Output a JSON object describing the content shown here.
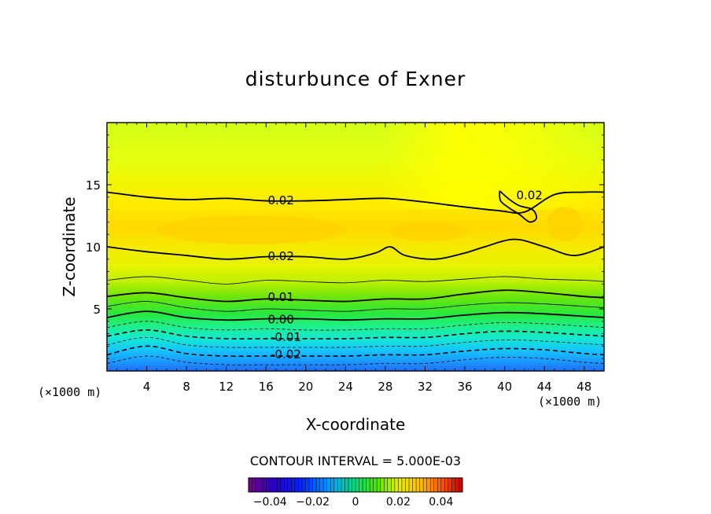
{
  "chart_data": {
    "type": "contour",
    "title": "disturbunce of Exner",
    "xlabel": "X-coordinate",
    "ylabel": "Z-coordinate",
    "x_unit": "(×1000 m)",
    "y_unit": "(×1000 m)",
    "xlim": [
      0,
      50
    ],
    "ylim": [
      0,
      20
    ],
    "x_ticks": [
      "4",
      "8",
      "12",
      "16",
      "20",
      "24",
      "28",
      "32",
      "36",
      "40",
      "44",
      "48"
    ],
    "y_ticks": [
      "5",
      "10",
      "15"
    ],
    "contour_interval_text": "CONTOUR INTERVAL = 5.000E-03",
    "contour_labels": [
      {
        "text": "0.02",
        "x": 17.5,
        "z": 13.8
      },
      {
        "text": "0.02",
        "x": 42.5,
        "z": 14.2
      },
      {
        "text": "0.02",
        "x": 17.5,
        "z": 9.3
      },
      {
        "text": "0.01",
        "x": 17.5,
        "z": 6.0
      },
      {
        "text": "0.00",
        "x": 17.5,
        "z": 4.2
      },
      {
        "text": "-0.01",
        "x": 18.0,
        "z": 2.8
      },
      {
        "text": "-0.02",
        "x": 18.0,
        "z": 1.4
      }
    ],
    "contours": [
      {
        "level": 0.02,
        "style": "thick",
        "points": [
          [
            0,
            14.4
          ],
          [
            4,
            14
          ],
          [
            8,
            13.8
          ],
          [
            12,
            13.9
          ],
          [
            16,
            13.7
          ],
          [
            20,
            13.7
          ],
          [
            24,
            13.8
          ],
          [
            28,
            13.9
          ],
          [
            32,
            13.6
          ],
          [
            36,
            13.2
          ],
          [
            39.5,
            12.9
          ],
          [
            42,
            12.8
          ],
          [
            45,
            14.2
          ],
          [
            48,
            14.4
          ],
          [
            50,
            14.4
          ]
        ]
      },
      {
        "level": 0.02,
        "style": "thick",
        "points": [
          [
            0,
            10
          ],
          [
            4,
            9.6
          ],
          [
            8,
            9.3
          ],
          [
            12,
            9.0
          ],
          [
            16,
            9.2
          ],
          [
            20,
            9.2
          ],
          [
            24,
            9.0
          ],
          [
            27,
            9.5
          ],
          [
            28.5,
            10.0
          ],
          [
            30,
            9.3
          ],
          [
            33,
            9.0
          ],
          [
            36,
            9.5
          ],
          [
            38,
            10.0
          ],
          [
            41,
            10.6
          ],
          [
            44,
            10.0
          ],
          [
            47,
            9.3
          ],
          [
            50,
            10.0
          ]
        ]
      },
      {
        "level": 0.015,
        "style": "thin",
        "points": [
          [
            0,
            7.3
          ],
          [
            4,
            7.6
          ],
          [
            8,
            7.3
          ],
          [
            12,
            7.0
          ],
          [
            16,
            7.3
          ],
          [
            20,
            7.2
          ],
          [
            24,
            7.1
          ],
          [
            28,
            7.3
          ],
          [
            32,
            7.2
          ],
          [
            36,
            7.4
          ],
          [
            40,
            7.6
          ],
          [
            44,
            7.4
          ],
          [
            48,
            7.3
          ],
          [
            50,
            7.2
          ]
        ]
      },
      {
        "level": 0.01,
        "style": "thick",
        "points": [
          [
            0,
            6.0
          ],
          [
            4,
            6.3
          ],
          [
            8,
            5.9
          ],
          [
            12,
            5.6
          ],
          [
            16,
            5.8
          ],
          [
            20,
            5.7
          ],
          [
            24,
            5.6
          ],
          [
            28,
            5.8
          ],
          [
            32,
            5.8
          ],
          [
            36,
            6.2
          ],
          [
            40,
            6.5
          ],
          [
            44,
            6.3
          ],
          [
            48,
            6.0
          ],
          [
            50,
            5.9
          ]
        ]
      },
      {
        "level": 0.005,
        "style": "thin",
        "points": [
          [
            0,
            5.2
          ],
          [
            4,
            5.6
          ],
          [
            8,
            5.1
          ],
          [
            12,
            4.8
          ],
          [
            16,
            5.0
          ],
          [
            20,
            4.9
          ],
          [
            24,
            4.8
          ],
          [
            28,
            5.0
          ],
          [
            32,
            5.0
          ],
          [
            36,
            5.3
          ],
          [
            40,
            5.5
          ],
          [
            44,
            5.4
          ],
          [
            48,
            5.2
          ],
          [
            50,
            5.1
          ]
        ]
      },
      {
        "level": 0.0,
        "style": "thick",
        "points": [
          [
            0,
            4.3
          ],
          [
            4,
            4.8
          ],
          [
            8,
            4.3
          ],
          [
            12,
            4.1
          ],
          [
            16,
            4.2
          ],
          [
            20,
            4.2
          ],
          [
            24,
            4.1
          ],
          [
            28,
            4.2
          ],
          [
            32,
            4.2
          ],
          [
            36,
            4.5
          ],
          [
            40,
            4.7
          ],
          [
            44,
            4.6
          ],
          [
            48,
            4.4
          ],
          [
            50,
            4.3
          ]
        ]
      },
      {
        "level": -0.005,
        "style": "dashed-thin",
        "points": [
          [
            0,
            3.5
          ],
          [
            4,
            4.0
          ],
          [
            8,
            3.5
          ],
          [
            12,
            3.3
          ],
          [
            16,
            3.4
          ],
          [
            20,
            3.3
          ],
          [
            24,
            3.3
          ],
          [
            28,
            3.4
          ],
          [
            32,
            3.4
          ],
          [
            36,
            3.7
          ],
          [
            40,
            3.9
          ],
          [
            44,
            3.8
          ],
          [
            48,
            3.6
          ],
          [
            50,
            3.5
          ]
        ]
      },
      {
        "level": -0.01,
        "style": "dashed",
        "points": [
          [
            0,
            2.8
          ],
          [
            4,
            3.3
          ],
          [
            8,
            2.8
          ],
          [
            12,
            2.6
          ],
          [
            16,
            2.6
          ],
          [
            20,
            2.6
          ],
          [
            24,
            2.6
          ],
          [
            28,
            2.7
          ],
          [
            32,
            2.7
          ],
          [
            36,
            3.0
          ],
          [
            40,
            3.2
          ],
          [
            44,
            3.1
          ],
          [
            48,
            2.9
          ],
          [
            50,
            2.8
          ]
        ]
      },
      {
        "level": -0.015,
        "style": "dashed-thin",
        "points": [
          [
            0,
            2.1
          ],
          [
            4,
            2.7
          ],
          [
            8,
            2.1
          ],
          [
            12,
            1.9
          ],
          [
            16,
            1.9
          ],
          [
            20,
            1.9
          ],
          [
            24,
            1.9
          ],
          [
            28,
            2.0
          ],
          [
            32,
            2.0
          ],
          [
            36,
            2.3
          ],
          [
            40,
            2.5
          ],
          [
            44,
            2.4
          ],
          [
            48,
            2.2
          ],
          [
            50,
            2.1
          ]
        ]
      },
      {
        "level": -0.02,
        "style": "dashed",
        "points": [
          [
            0,
            1.3
          ],
          [
            4,
            2.0
          ],
          [
            8,
            1.4
          ],
          [
            12,
            1.2
          ],
          [
            16,
            1.2
          ],
          [
            20,
            1.2
          ],
          [
            24,
            1.2
          ],
          [
            28,
            1.3
          ],
          [
            32,
            1.3
          ],
          [
            36,
            1.6
          ],
          [
            40,
            1.8
          ],
          [
            44,
            1.7
          ],
          [
            48,
            1.4
          ],
          [
            50,
            1.3
          ]
        ]
      },
      {
        "level": -0.025,
        "style": "dashed-thin",
        "points": [
          [
            0,
            0.6
          ],
          [
            4,
            1.2
          ],
          [
            8,
            0.7
          ],
          [
            12,
            0.5
          ],
          [
            16,
            0.5
          ],
          [
            20,
            0.5
          ],
          [
            24,
            0.5
          ],
          [
            28,
            0.6
          ],
          [
            32,
            0.6
          ],
          [
            36,
            0.9
          ],
          [
            40,
            1.1
          ],
          [
            44,
            1.0
          ],
          [
            48,
            0.7
          ],
          [
            50,
            0.6
          ]
        ]
      }
    ],
    "loop_contour": {
      "level": 0.02,
      "style": "thick",
      "points": [
        [
          39.5,
          14.5
        ],
        [
          40.5,
          13.8
        ],
        [
          41.5,
          13.3
        ],
        [
          42.8,
          13.0
        ],
        [
          43.2,
          12.3
        ],
        [
          42.5,
          12.0
        ],
        [
          41.5,
          12.6
        ],
        [
          40.5,
          13.1
        ],
        [
          39.6,
          13.7
        ],
        [
          39.5,
          14.5
        ]
      ]
    },
    "colorbar": {
      "range": [
        -0.05,
        0.05
      ],
      "tick_labels": [
        "-0.04",
        "-0.02",
        "0",
        "0.02",
        "0.04"
      ],
      "tick_values": [
        -0.04,
        -0.02,
        0,
        0.02,
        0.04
      ]
    }
  }
}
